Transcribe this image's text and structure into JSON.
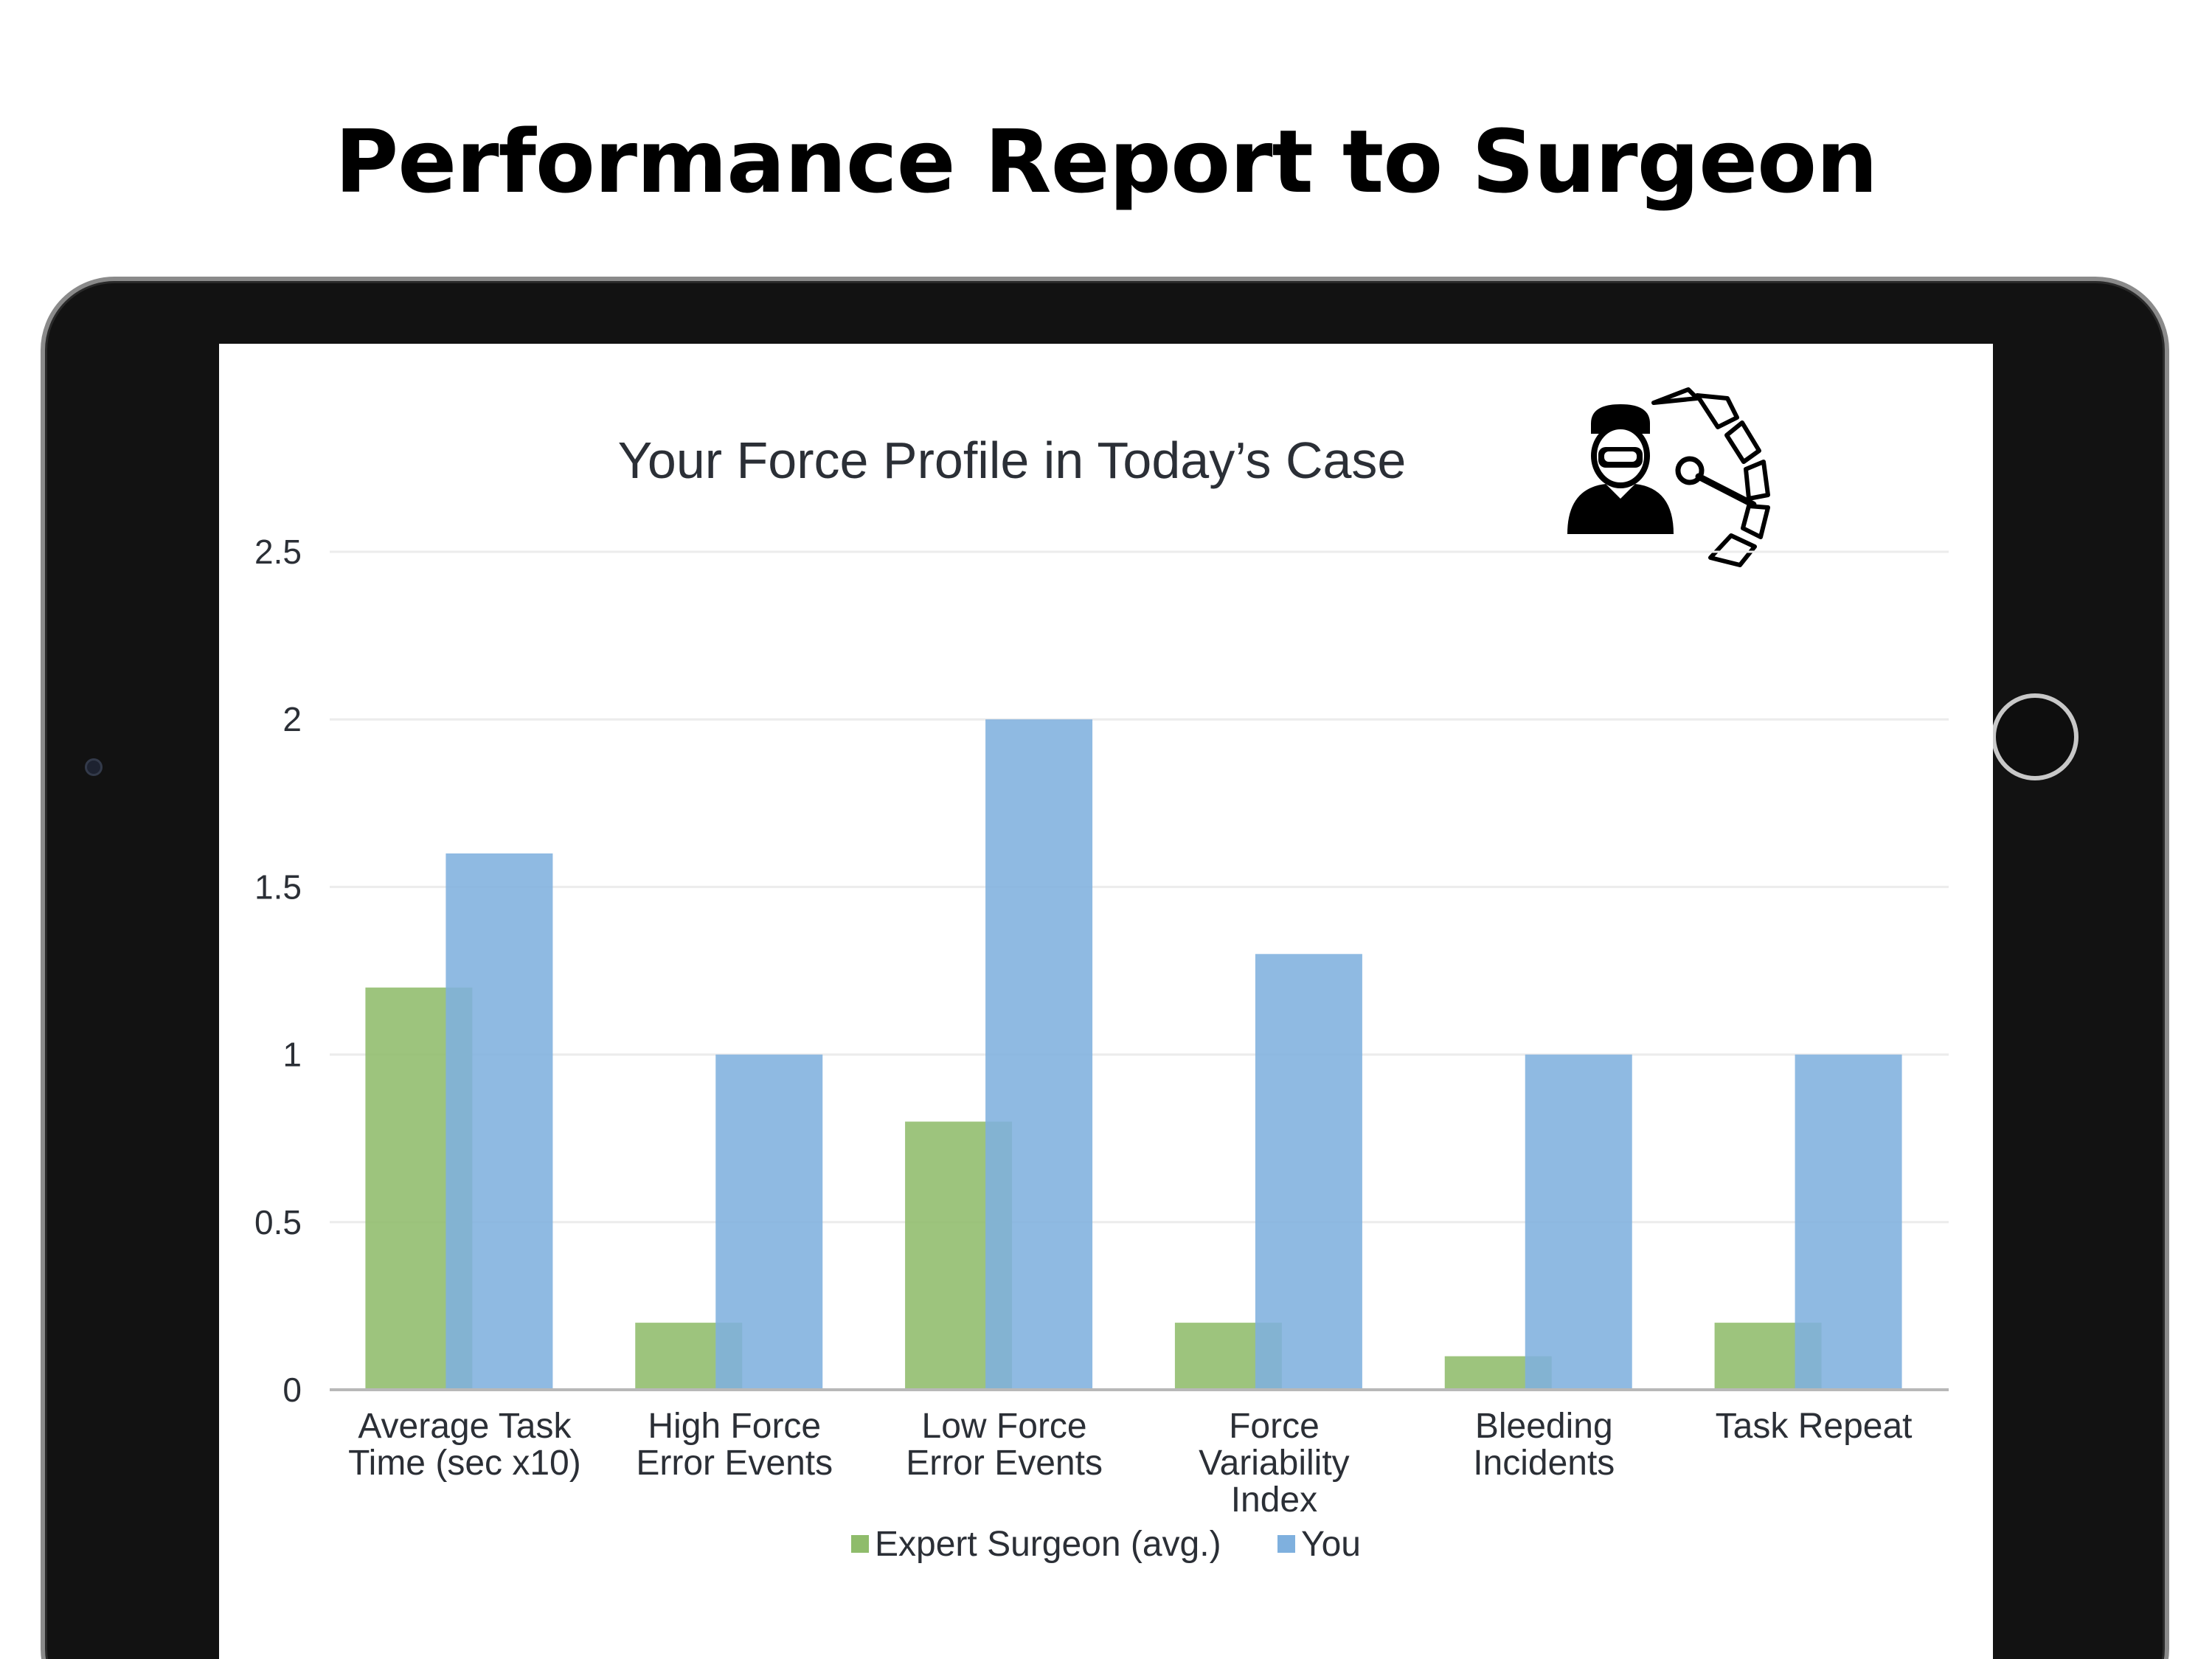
{
  "page": {
    "title": "Performance Report to Surgeon"
  },
  "icons": {
    "dashboard_icon": "surgeon-gauge-icon",
    "camera": "camera-icon",
    "home_button": "home-button-icon"
  },
  "chart_data": {
    "type": "bar",
    "title": "Your Force Profile in Today’s Case",
    "categories": [
      [
        "Average Task",
        "Time (sec x10)"
      ],
      [
        "High Force",
        "Error Events"
      ],
      [
        "Low Force",
        "Error Events"
      ],
      [
        "Force",
        "Variability",
        "Index"
      ],
      [
        "Bleeding",
        "Incidents"
      ],
      [
        "Task Repeat"
      ]
    ],
    "series": [
      {
        "name": "Expert Surgeon (avg.)",
        "color": "#8fbc6b",
        "values": [
          1.2,
          0.2,
          0.8,
          0.2,
          0.1,
          0.2
        ]
      },
      {
        "name": "You",
        "color": "#7fb0de",
        "values": [
          1.6,
          1.0,
          2.0,
          1.3,
          1.0,
          1.0
        ]
      }
    ],
    "yticks": [
      "0",
      "0.5",
      "1",
      "1.5",
      "2",
      "2.5"
    ],
    "ylim": [
      0,
      2.5
    ],
    "grid": true,
    "legend_position": "bottom"
  }
}
